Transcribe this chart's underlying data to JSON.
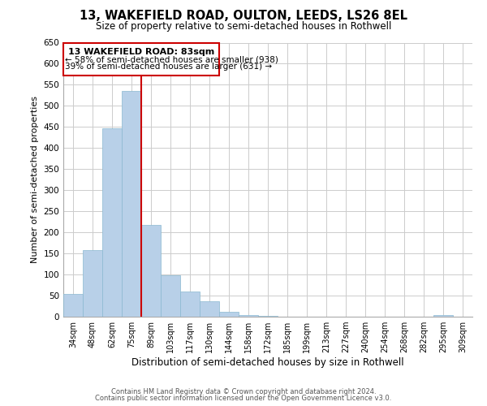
{
  "title": "13, WAKEFIELD ROAD, OULTON, LEEDS, LS26 8EL",
  "subtitle": "Size of property relative to semi-detached houses in Rothwell",
  "xlabel": "Distribution of semi-detached houses by size in Rothwell",
  "ylabel": "Number of semi-detached properties",
  "bar_labels": [
    "34sqm",
    "48sqm",
    "62sqm",
    "75sqm",
    "89sqm",
    "103sqm",
    "117sqm",
    "130sqm",
    "144sqm",
    "158sqm",
    "172sqm",
    "185sqm",
    "199sqm",
    "213sqm",
    "227sqm",
    "240sqm",
    "254sqm",
    "268sqm",
    "282sqm",
    "295sqm",
    "309sqm"
  ],
  "bar_values": [
    53,
    157,
    447,
    535,
    217,
    98,
    59,
    36,
    12,
    3,
    1,
    0,
    0,
    0,
    0,
    0,
    0,
    0,
    0,
    4,
    0
  ],
  "bar_color": "#b8d0e8",
  "bar_edgecolor": "#8ab8d0",
  "marker_label": "13 WAKEFIELD ROAD: 83sqm",
  "annotation_line1": "← 58% of semi-detached houses are smaller (938)",
  "annotation_line2": "39% of semi-detached houses are larger (631) →",
  "annotation_box_color": "#cc0000",
  "ylim": [
    0,
    650
  ],
  "yticks": [
    0,
    50,
    100,
    150,
    200,
    250,
    300,
    350,
    400,
    450,
    500,
    550,
    600,
    650
  ],
  "footer_line1": "Contains HM Land Registry data © Crown copyright and database right 2024.",
  "footer_line2": "Contains public sector information licensed under the Open Government Licence v3.0.",
  "background_color": "#ffffff",
  "grid_color": "#cccccc"
}
